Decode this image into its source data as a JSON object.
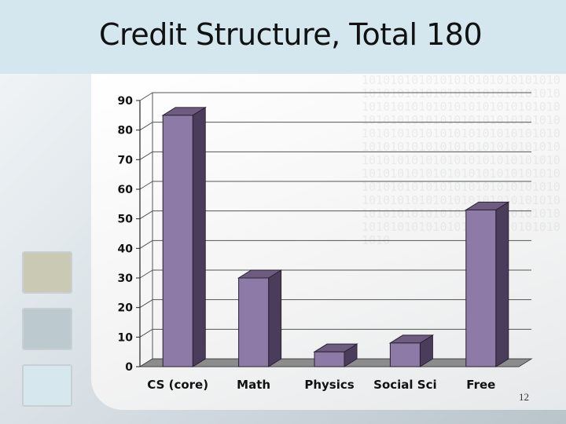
{
  "slide": {
    "title": "Credit Structure, Total 180",
    "page_number": "12",
    "binary_pattern": "1010101010101010101010101010101010101010101010101010101010101010101010101010101010101010101010101010101010101010101010101010101010101010101010101010101010101010101010101010101010101010101010101010101010101010101010101010101010101010101010101010101010101010101010101010101010101010101010101010101010101010101010101010101010101010101010101010"
  },
  "chart_data": {
    "type": "bar",
    "categories": [
      "CS (core)",
      "Math",
      "Physics",
      "Social Sci",
      "Free"
    ],
    "values": [
      85,
      30,
      5,
      8,
      53
    ],
    "ylim": [
      0,
      90
    ],
    "yticks": [
      "0",
      "10",
      "20",
      "30",
      "40",
      "50",
      "60",
      "70",
      "80",
      "90"
    ],
    "grid": true,
    "bar_style": "3d",
    "colors": {
      "bar_front": "#8e7aa6",
      "bar_top": "#6d5c80",
      "bar_side": "#4a3d5b"
    }
  }
}
